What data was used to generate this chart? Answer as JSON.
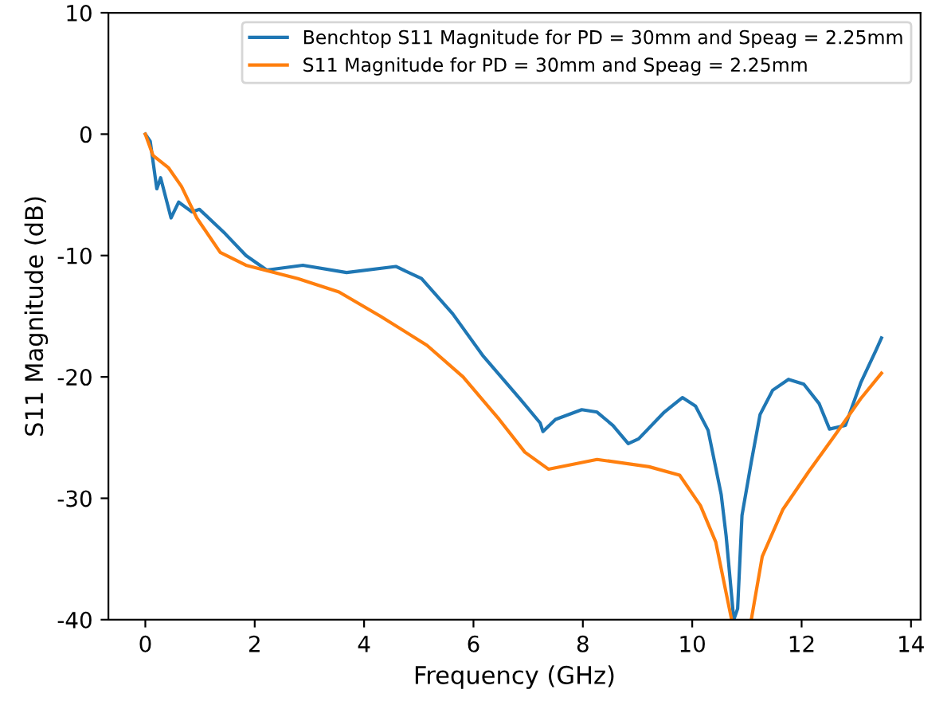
{
  "chart_data": {
    "type": "line",
    "xlabel": "Frequency (GHz)",
    "ylabel": "S11 Magnitude (dB)",
    "xlim": [
      -0.675,
      14.175
    ],
    "ylim": [
      -40,
      10
    ],
    "xticks": [
      0,
      2,
      4,
      6,
      8,
      10,
      12,
      14
    ],
    "yticks": [
      -40,
      -30,
      -20,
      -10,
      0,
      10
    ],
    "grid": false,
    "legend": "top right",
    "line_style": "solid",
    "marker": "none",
    "series": [
      {
        "name": "Benchtop S11 Magnitude for PD = 30mm and Speag = 2.25mm",
        "color": "#1f77b4",
        "x": [
          0,
          0.09,
          0.21,
          0.28,
          0.47,
          0.61,
          0.85,
          0.99,
          1.46,
          1.84,
          2.22,
          2.88,
          3.68,
          4.58,
          5.05,
          5.62,
          6.18,
          6.85,
          7.22,
          7.27,
          7.5,
          7.98,
          8.26,
          8.55,
          8.83,
          9.02,
          9.49,
          9.82,
          10.06,
          10.29,
          10.53,
          10.62,
          10.76,
          10.83,
          10.91,
          11.08,
          11.24,
          11.47,
          11.76,
          12.04,
          12.32,
          12.51,
          12.8,
          13.08,
          13.36,
          13.46
        ],
        "values": [
          0,
          -0.6,
          -4.5,
          -3.6,
          -6.9,
          -5.6,
          -6.4,
          -6.2,
          -8.2,
          -10.0,
          -11.2,
          -10.8,
          -11.4,
          -10.9,
          -11.9,
          -14.8,
          -18.3,
          -21.8,
          -23.8,
          -24.5,
          -23.5,
          -22.7,
          -22.9,
          -24.0,
          -25.5,
          -25.1,
          -22.9,
          -21.7,
          -22.4,
          -24.4,
          -29.7,
          -33.1,
          -40,
          -39.1,
          -31.4,
          -27.0,
          -23.1,
          -21.1,
          -20.2,
          -20.6,
          -22.2,
          -24.3,
          -24.0,
          -20.5,
          -17.8,
          -16.8
        ]
      },
      {
        "name": "S11 Magnitude for PD = 30mm and Speag = 2.25mm",
        "color": "#ff7f0e",
        "x": [
          0,
          0.14,
          0.42,
          0.66,
          0.94,
          1.37,
          1.84,
          2.79,
          3.54,
          4.3,
          5.15,
          5.81,
          6.47,
          6.94,
          7.37,
          8.26,
          9.21,
          9.77,
          10.15,
          10.43,
          10.72,
          10.9,
          11.08,
          11.28,
          11.66,
          12.13,
          12.61,
          13.08,
          13.46
        ],
        "values": [
          0,
          -1.75,
          -2.75,
          -4.3,
          -6.9,
          -9.75,
          -10.8,
          -11.9,
          -13.0,
          -15.0,
          -17.4,
          -20.0,
          -23.5,
          -26.2,
          -27.6,
          -26.8,
          -27.4,
          -28.1,
          -30.6,
          -33.6,
          -40,
          null,
          -40,
          -34.8,
          -30.9,
          -27.8,
          -24.8,
          -21.8,
          -19.7
        ]
      }
    ]
  }
}
